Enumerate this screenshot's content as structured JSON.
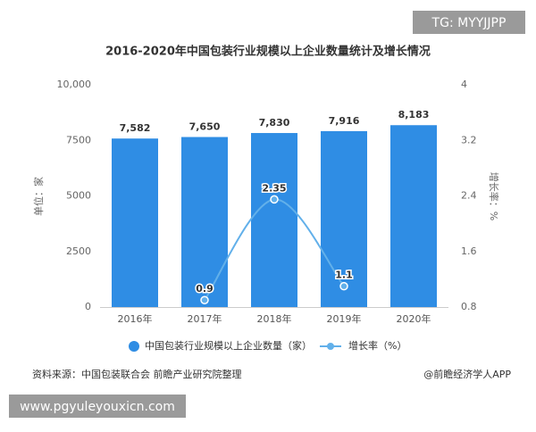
{
  "header_tag": "TG: MYYJJPP",
  "chart_data": {
    "type": "bar-line",
    "title": "2016-2020年中国包装行业规模以上企业数量统计及增长情况",
    "y_label": "单位：家",
    "y2_label": "增长率：%",
    "categories": [
      "2016年",
      "2017年",
      "2018年",
      "2019年",
      "2020年"
    ],
    "series": [
      {
        "name": "中国包装行业规模以上企业数量（家）",
        "type": "bar",
        "color": "#2f8de4",
        "values": [
          7582,
          7650,
          7830,
          7916,
          8183
        ],
        "value_labels": [
          "7,582",
          "7,650",
          "7,830",
          "7,916",
          "8,183"
        ]
      },
      {
        "name": "增长率（%）",
        "type": "line",
        "axis": "y2",
        "color": "#62b0ea",
        "values": [
          null,
          0.9,
          2.35,
          1.1,
          null
        ]
      }
    ],
    "ylim": [
      0,
      10000
    ],
    "yticks": [
      0,
      2500,
      5000,
      7500,
      {
        "value": 10000,
        "label": "10,000"
      }
    ],
    "y2lim": [
      0.8,
      4
    ],
    "y2ticks": [
      0.8,
      1.6,
      2.4,
      3.2,
      4
    ],
    "grid": false
  },
  "source": "资料来源：中国包装联合会 前瞻产业研究院整理",
  "brand": "@前瞻经济学人APP",
  "footer_url": "www.pgyuleyouxicn.com"
}
